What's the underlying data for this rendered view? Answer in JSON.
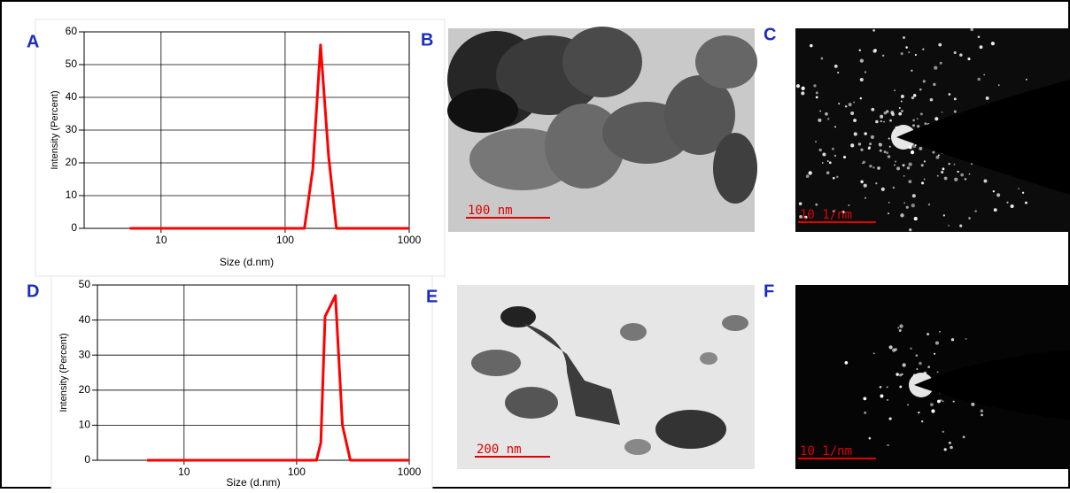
{
  "chart_data": [
    {
      "type": "line",
      "xlabel": "Size (d.nm)",
      "ylabel": "Intensity (Percent)",
      "xscale": "log",
      "x": [
        5.6,
        10,
        30,
        100,
        143,
        167,
        193,
        224,
        259,
        500,
        1000
      ],
      "values": [
        0,
        0,
        0,
        0,
        0,
        18,
        56,
        22,
        0,
        0,
        0
      ],
      "color": "#ff0000",
      "xlim": [
        2.4,
        1000
      ],
      "xticks": [
        10,
        100,
        1000
      ],
      "ylim": [
        0,
        60
      ],
      "yticks": [
        0,
        10,
        20,
        30,
        40,
        50,
        60
      ],
      "grid": true
    },
    {
      "type": "line",
      "xlabel": "Size (d.nm)",
      "ylabel": "Intensity (Percent)",
      "xscale": "log",
      "x": [
        4.7,
        10,
        30,
        100,
        150,
        164,
        179,
        221,
        255,
        300,
        1000
      ],
      "values": [
        0,
        0,
        0,
        0,
        0,
        5,
        41,
        47,
        10,
        0,
        0
      ],
      "color": "#ff0000",
      "xlim": [
        1.7,
        1000
      ],
      "xticks": [
        10,
        100,
        1000
      ],
      "ylim": [
        0,
        50
      ],
      "yticks": [
        0,
        10,
        20,
        30,
        40,
        50
      ],
      "grid": true
    }
  ],
  "panel_labels": [
    "A",
    "B",
    "C",
    "D",
    "E",
    "F"
  ],
  "scale_bars": [
    "100 nm",
    "10 1/nm",
    "200 nm",
    "10 1/nm"
  ]
}
